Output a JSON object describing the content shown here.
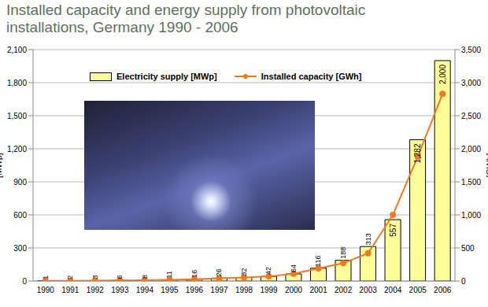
{
  "chart_data": {
    "type": "bar",
    "title": "Installed capacity and energy supply from photovoltaic installations, Germany 1990 - 2006",
    "categories": [
      "1990",
      "1991",
      "1992",
      "1993",
      "1994",
      "1995",
      "1996",
      "1997",
      "1998",
      "1999",
      "2000",
      "2001",
      "2002",
      "2003",
      "2004",
      "2005",
      "2006"
    ],
    "series": [
      {
        "name": "Electricity supply [MWp]",
        "type": "bar",
        "color": "#ffff99",
        "values": [
          1,
          2,
          3,
          6,
          8,
          11,
          16,
          26,
          32,
          42,
          64,
          116,
          188,
          313,
          557,
          1282,
          2000
        ],
        "value_labels": [
          "1",
          "2",
          "3",
          "6",
          "8",
          "11",
          "16",
          "26",
          "32",
          "42",
          "64",
          "116",
          "188",
          "313",
          "557",
          "1,282",
          "2,000"
        ]
      },
      {
        "name": "Installed capacity [GWh]",
        "type": "line",
        "axis": "y2",
        "color": "#f07820",
        "marker": "circle",
        "values": [
          2,
          3,
          6,
          9,
          12,
          18,
          28,
          42,
          55,
          70,
          110,
          190,
          270,
          420,
          1000,
          1880,
          2830
        ]
      }
    ],
    "y_label": "[MWp]",
    "y2_label": "[GWh]",
    "ylim": [
      0,
      2100
    ],
    "yticks": [
      0,
      300,
      600,
      900,
      {
        "value": 1200,
        "label": "1,200"
      },
      {
        "value": 1500,
        "label": "1,500"
      },
      {
        "value": 1800,
        "label": "1,800"
      },
      {
        "value": 2100,
        "label": "2,100"
      }
    ],
    "y2lim": [
      0,
      3500
    ],
    "y2ticks": [
      0,
      500,
      {
        "value": 1000,
        "label": "1,000"
      },
      {
        "value": 1500,
        "label": "1,500"
      },
      {
        "value": 2000,
        "label": "2,000"
      },
      {
        "value": 2500,
        "label": "2,500"
      },
      {
        "value": 3000,
        "label": "3,000"
      },
      {
        "value": 3500,
        "label": "3,500"
      }
    ],
    "grid": true,
    "legend": "upper left",
    "data_labels": true
  }
}
